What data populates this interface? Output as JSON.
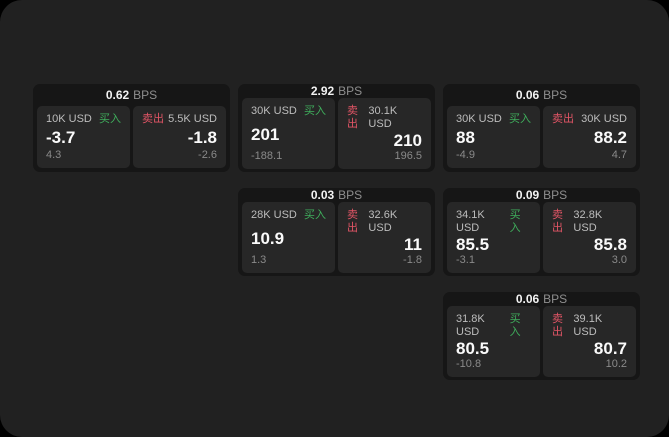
{
  "labels": {
    "bps_unit": "BPS",
    "buy": "买入",
    "sell": "卖出"
  },
  "colors": {
    "window_bg": "#212121",
    "card_bg": "#161616",
    "panel_bg": "#272727",
    "buy_green": "#3fae5c",
    "sell_red": "#e25566"
  },
  "columns": [
    {
      "cards": [
        {
          "bps": "0.62",
          "buy": {
            "amount": "10K USD",
            "value": "-3.7",
            "sub": "4.3"
          },
          "sell": {
            "amount": "5.5K USD",
            "value": "-1.8",
            "sub": "-2.6"
          }
        }
      ]
    },
    {
      "cards": [
        {
          "bps": "2.92",
          "buy": {
            "amount": "30K USD",
            "value": "201",
            "sub": "-188.1"
          },
          "sell": {
            "amount": "30.1K USD",
            "value": "210",
            "sub": "196.5"
          }
        },
        {
          "bps": "0.03",
          "buy": {
            "amount": "28K USD",
            "value": "10.9",
            "sub": "1.3"
          },
          "sell": {
            "amount": "32.6K USD",
            "value": "11",
            "sub": "-1.8"
          }
        }
      ]
    },
    {
      "cards": [
        {
          "bps": "0.06",
          "buy": {
            "amount": "30K USD",
            "value": "88",
            "sub": "-4.9"
          },
          "sell": {
            "amount": "30K USD",
            "value": "88.2",
            "sub": "4.7"
          }
        },
        {
          "bps": "0.09",
          "buy": {
            "amount": "34.1K USD",
            "value": "85.5",
            "sub": "-3.1"
          },
          "sell": {
            "amount": "32.8K USD",
            "value": "85.8",
            "sub": "3.0"
          }
        },
        {
          "bps": "0.06",
          "buy": {
            "amount": "31.8K USD",
            "value": "80.5",
            "sub": "-10.8"
          },
          "sell": {
            "amount": "39.1K USD",
            "value": "80.7",
            "sub": "10.2"
          }
        }
      ]
    }
  ]
}
